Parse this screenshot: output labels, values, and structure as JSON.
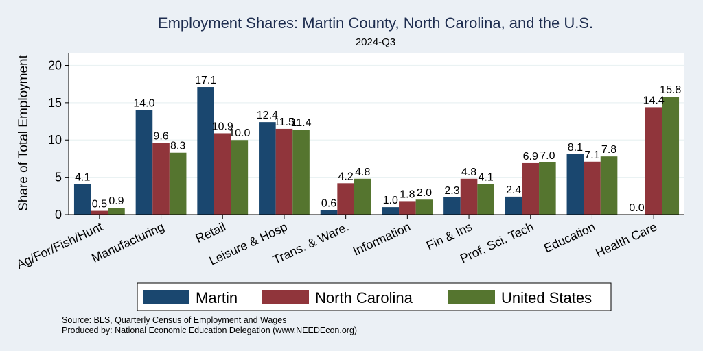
{
  "chart_data": {
    "type": "bar",
    "title": "Employment Shares: Martin County, North Carolina, and the U.S.",
    "subtitle": "2024-Q3",
    "xlabel": "",
    "ylabel": "Share of Total Employment",
    "ylim": [
      0,
      21.7
    ],
    "yticks": [
      0,
      5,
      10,
      15,
      20
    ],
    "grid": "horizontal",
    "legend_position": "bottom",
    "categories": [
      "Ag/For/Fish/Hunt",
      "Manufacturing",
      "Retail",
      "Leisure & Hosp",
      "Trans. & Ware.",
      "Information",
      "Fin & Ins",
      "Prof, Sci, Tech",
      "Education",
      "Health Care"
    ],
    "series": [
      {
        "name": "Martin",
        "color": "#1a476f",
        "values": [
          4.1,
          14.0,
          17.1,
          12.4,
          0.6,
          1.0,
          2.3,
          2.4,
          8.1,
          0.0
        ],
        "labels": [
          "4.1",
          "14.0",
          "17.1",
          "12.4",
          "0.6",
          "1.0",
          "2.3",
          "2.4",
          "8.1",
          "0.0"
        ]
      },
      {
        "name": "North Carolina",
        "color": "#90353b",
        "values": [
          0.5,
          9.6,
          10.9,
          11.5,
          4.2,
          1.8,
          4.8,
          6.9,
          7.1,
          14.4
        ],
        "labels": [
          "0.5",
          "9.6",
          "10.9",
          "11.5",
          "4.2",
          "1.8",
          "4.8",
          "6.9",
          "7.1",
          "14.4"
        ]
      },
      {
        "name": "United States",
        "color": "#55752f",
        "values": [
          0.9,
          8.3,
          10.0,
          11.4,
          4.8,
          2.0,
          4.1,
          7.0,
          7.8,
          15.8
        ],
        "labels": [
          "0.9",
          "8.3",
          "10.0",
          "11.4",
          "4.8",
          "2.0",
          "4.1",
          "7.0",
          "7.8",
          "15.8"
        ]
      }
    ]
  },
  "footer": {
    "source": "Source: BLS, Quarterly Census of Employment and Wages",
    "produced_by": "Produced by: National Economic Education Delegation (www.NEEDEcon.org)"
  }
}
